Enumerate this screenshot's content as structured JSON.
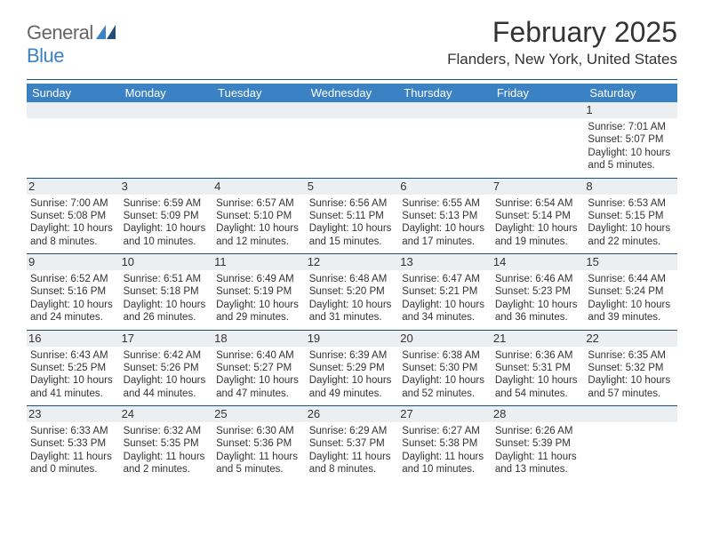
{
  "logo": {
    "text1": "General",
    "text2": "Blue"
  },
  "title": "February 2025",
  "location": "Flanders, New York, United States",
  "colors": {
    "header_bg": "#3b82c4",
    "rule": "#1f4e79",
    "daybar_bg": "#eceff1",
    "text": "#333333",
    "logo_gray": "#666666",
    "logo_blue": "#3b82c4",
    "page_bg": "#ffffff"
  },
  "weekdays": [
    "Sunday",
    "Monday",
    "Tuesday",
    "Wednesday",
    "Thursday",
    "Friday",
    "Saturday"
  ],
  "layout": {
    "columns": 7,
    "rows": 5,
    "cell_font_size_pt": 11.5,
    "weekday_font_size_pt": 13,
    "title_font_size_pt": 32,
    "location_font_size_pt": 17
  },
  "weeks": [
    [
      null,
      null,
      null,
      null,
      null,
      null,
      {
        "n": "1",
        "sunrise": "Sunrise: 7:01 AM",
        "sunset": "Sunset: 5:07 PM",
        "day1": "Daylight: 10 hours",
        "day2": "and 5 minutes."
      }
    ],
    [
      {
        "n": "2",
        "sunrise": "Sunrise: 7:00 AM",
        "sunset": "Sunset: 5:08 PM",
        "day1": "Daylight: 10 hours",
        "day2": "and 8 minutes."
      },
      {
        "n": "3",
        "sunrise": "Sunrise: 6:59 AM",
        "sunset": "Sunset: 5:09 PM",
        "day1": "Daylight: 10 hours",
        "day2": "and 10 minutes."
      },
      {
        "n": "4",
        "sunrise": "Sunrise: 6:57 AM",
        "sunset": "Sunset: 5:10 PM",
        "day1": "Daylight: 10 hours",
        "day2": "and 12 minutes."
      },
      {
        "n": "5",
        "sunrise": "Sunrise: 6:56 AM",
        "sunset": "Sunset: 5:11 PM",
        "day1": "Daylight: 10 hours",
        "day2": "and 15 minutes."
      },
      {
        "n": "6",
        "sunrise": "Sunrise: 6:55 AM",
        "sunset": "Sunset: 5:13 PM",
        "day1": "Daylight: 10 hours",
        "day2": "and 17 minutes."
      },
      {
        "n": "7",
        "sunrise": "Sunrise: 6:54 AM",
        "sunset": "Sunset: 5:14 PM",
        "day1": "Daylight: 10 hours",
        "day2": "and 19 minutes."
      },
      {
        "n": "8",
        "sunrise": "Sunrise: 6:53 AM",
        "sunset": "Sunset: 5:15 PM",
        "day1": "Daylight: 10 hours",
        "day2": "and 22 minutes."
      }
    ],
    [
      {
        "n": "9",
        "sunrise": "Sunrise: 6:52 AM",
        "sunset": "Sunset: 5:16 PM",
        "day1": "Daylight: 10 hours",
        "day2": "and 24 minutes."
      },
      {
        "n": "10",
        "sunrise": "Sunrise: 6:51 AM",
        "sunset": "Sunset: 5:18 PM",
        "day1": "Daylight: 10 hours",
        "day2": "and 26 minutes."
      },
      {
        "n": "11",
        "sunrise": "Sunrise: 6:49 AM",
        "sunset": "Sunset: 5:19 PM",
        "day1": "Daylight: 10 hours",
        "day2": "and 29 minutes."
      },
      {
        "n": "12",
        "sunrise": "Sunrise: 6:48 AM",
        "sunset": "Sunset: 5:20 PM",
        "day1": "Daylight: 10 hours",
        "day2": "and 31 minutes."
      },
      {
        "n": "13",
        "sunrise": "Sunrise: 6:47 AM",
        "sunset": "Sunset: 5:21 PM",
        "day1": "Daylight: 10 hours",
        "day2": "and 34 minutes."
      },
      {
        "n": "14",
        "sunrise": "Sunrise: 6:46 AM",
        "sunset": "Sunset: 5:23 PM",
        "day1": "Daylight: 10 hours",
        "day2": "and 36 minutes."
      },
      {
        "n": "15",
        "sunrise": "Sunrise: 6:44 AM",
        "sunset": "Sunset: 5:24 PM",
        "day1": "Daylight: 10 hours",
        "day2": "and 39 minutes."
      }
    ],
    [
      {
        "n": "16",
        "sunrise": "Sunrise: 6:43 AM",
        "sunset": "Sunset: 5:25 PM",
        "day1": "Daylight: 10 hours",
        "day2": "and 41 minutes."
      },
      {
        "n": "17",
        "sunrise": "Sunrise: 6:42 AM",
        "sunset": "Sunset: 5:26 PM",
        "day1": "Daylight: 10 hours",
        "day2": "and 44 minutes."
      },
      {
        "n": "18",
        "sunrise": "Sunrise: 6:40 AM",
        "sunset": "Sunset: 5:27 PM",
        "day1": "Daylight: 10 hours",
        "day2": "and 47 minutes."
      },
      {
        "n": "19",
        "sunrise": "Sunrise: 6:39 AM",
        "sunset": "Sunset: 5:29 PM",
        "day1": "Daylight: 10 hours",
        "day2": "and 49 minutes."
      },
      {
        "n": "20",
        "sunrise": "Sunrise: 6:38 AM",
        "sunset": "Sunset: 5:30 PM",
        "day1": "Daylight: 10 hours",
        "day2": "and 52 minutes."
      },
      {
        "n": "21",
        "sunrise": "Sunrise: 6:36 AM",
        "sunset": "Sunset: 5:31 PM",
        "day1": "Daylight: 10 hours",
        "day2": "and 54 minutes."
      },
      {
        "n": "22",
        "sunrise": "Sunrise: 6:35 AM",
        "sunset": "Sunset: 5:32 PM",
        "day1": "Daylight: 10 hours",
        "day2": "and 57 minutes."
      }
    ],
    [
      {
        "n": "23",
        "sunrise": "Sunrise: 6:33 AM",
        "sunset": "Sunset: 5:33 PM",
        "day1": "Daylight: 11 hours",
        "day2": "and 0 minutes."
      },
      {
        "n": "24",
        "sunrise": "Sunrise: 6:32 AM",
        "sunset": "Sunset: 5:35 PM",
        "day1": "Daylight: 11 hours",
        "day2": "and 2 minutes."
      },
      {
        "n": "25",
        "sunrise": "Sunrise: 6:30 AM",
        "sunset": "Sunset: 5:36 PM",
        "day1": "Daylight: 11 hours",
        "day2": "and 5 minutes."
      },
      {
        "n": "26",
        "sunrise": "Sunrise: 6:29 AM",
        "sunset": "Sunset: 5:37 PM",
        "day1": "Daylight: 11 hours",
        "day2": "and 8 minutes."
      },
      {
        "n": "27",
        "sunrise": "Sunrise: 6:27 AM",
        "sunset": "Sunset: 5:38 PM",
        "day1": "Daylight: 11 hours",
        "day2": "and 10 minutes."
      },
      {
        "n": "28",
        "sunrise": "Sunrise: 6:26 AM",
        "sunset": "Sunset: 5:39 PM",
        "day1": "Daylight: 11 hours",
        "day2": "and 13 minutes."
      },
      null
    ]
  ]
}
